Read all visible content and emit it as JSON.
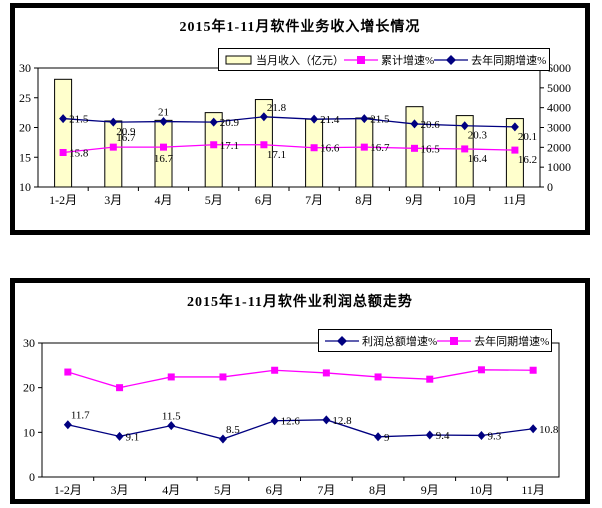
{
  "page": {
    "background": "#ffffff",
    "panel_border_color": "#000000"
  },
  "colors": {
    "bar_fill": "#ffffcc",
    "cumulative_line": "#ff00ff",
    "last_year_line": "#000080",
    "text": "#000000"
  },
  "chart_data": [
    {
      "type": "bar",
      "subtype": "bar+line combo, dual axis",
      "title": "2015年1-11月软件业务收入增长情况",
      "categories": [
        "1-2月",
        "3月",
        "4月",
        "5月",
        "6月",
        "7月",
        "8月",
        "9月",
        "10月",
        "11月"
      ],
      "left_axis": {
        "range": [
          10,
          30
        ],
        "ticks": [
          30,
          25,
          20,
          15,
          10
        ]
      },
      "right_axis": {
        "range": [
          0,
          6000
        ],
        "ticks": [
          6000,
          5000,
          4000,
          3000,
          2000,
          1000,
          0
        ]
      },
      "grid": false,
      "legend_position": "top-center",
      "series": [
        {
          "name": "当月收入（亿元）",
          "kind": "bar",
          "axis": "right",
          "color": "#ffffcc",
          "values": [
            5430,
            3330,
            3360,
            3750,
            4410,
            3420,
            3480,
            4050,
            3600,
            3450
          ]
        },
        {
          "name": "累计增速%",
          "kind": "line",
          "marker": "square",
          "axis": "left",
          "color": "#ff00ff",
          "values": [
            15.8,
            16.7,
            16.7,
            17.1,
            17.1,
            16.6,
            16.7,
            16.5,
            16.4,
            16.2
          ],
          "labels": [
            "15.8",
            "16.7",
            "16.7",
            "17.1",
            "17.1",
            "16.6",
            "16.7",
            "16.5",
            "16.4",
            "16.2"
          ],
          "label_pos": [
            "right",
            "above-right",
            "below",
            "right",
            "below-right",
            "right",
            "right",
            "right",
            "below-right",
            "below-right"
          ]
        },
        {
          "name": "去年同期增速%",
          "kind": "line",
          "marker": "diamond",
          "axis": "left",
          "color": "#000080",
          "values": [
            21.5,
            20.9,
            21,
            20.9,
            21.8,
            21.4,
            21.5,
            20.6,
            20.3,
            20.1
          ],
          "labels": [
            "21.5",
            "20.9",
            "21",
            "20.9",
            "21.8",
            "21.4",
            "21.5",
            "20.6",
            "20.3",
            "20.1"
          ],
          "label_pos": [
            "right",
            "below-right",
            "above",
            "right",
            "above-right",
            "right",
            "right",
            "right",
            "below-right",
            "below-right"
          ]
        }
      ]
    },
    {
      "type": "line",
      "title": "2015年1-11月软件业利润总额走势",
      "categories": [
        "1-2月",
        "3月",
        "4月",
        "5月",
        "6月",
        "7月",
        "8月",
        "9月",
        "10月",
        "11月"
      ],
      "left_axis": {
        "range": [
          0,
          30
        ],
        "ticks": [
          30,
          20,
          10,
          0
        ]
      },
      "grid": false,
      "legend_position": "top-right",
      "series": [
        {
          "name": "利润总额增速%",
          "kind": "line",
          "marker": "diamond",
          "axis": "left",
          "color": "#000080",
          "values": [
            11.7,
            9.1,
            11.5,
            8.5,
            12.6,
            12.8,
            9,
            9.4,
            9.3,
            10.8
          ],
          "labels": [
            "11.7",
            "9.1",
            "11.5",
            "8.5",
            "12.6",
            "12.8",
            "9",
            "9.4",
            "9.3",
            "10.8"
          ],
          "label_pos": [
            "above-right",
            "right",
            "above",
            "above-right",
            "right",
            "right",
            "right",
            "right",
            "right",
            "right"
          ]
        },
        {
          "name": "去年同期增速%",
          "kind": "line",
          "marker": "square",
          "axis": "left",
          "color": "#ff00ff",
          "values": [
            23.5,
            20,
            22.4,
            22.4,
            23.9,
            23.3,
            22.4,
            21.9,
            24,
            23.9
          ],
          "labels": [],
          "label_pos": []
        }
      ]
    }
  ]
}
